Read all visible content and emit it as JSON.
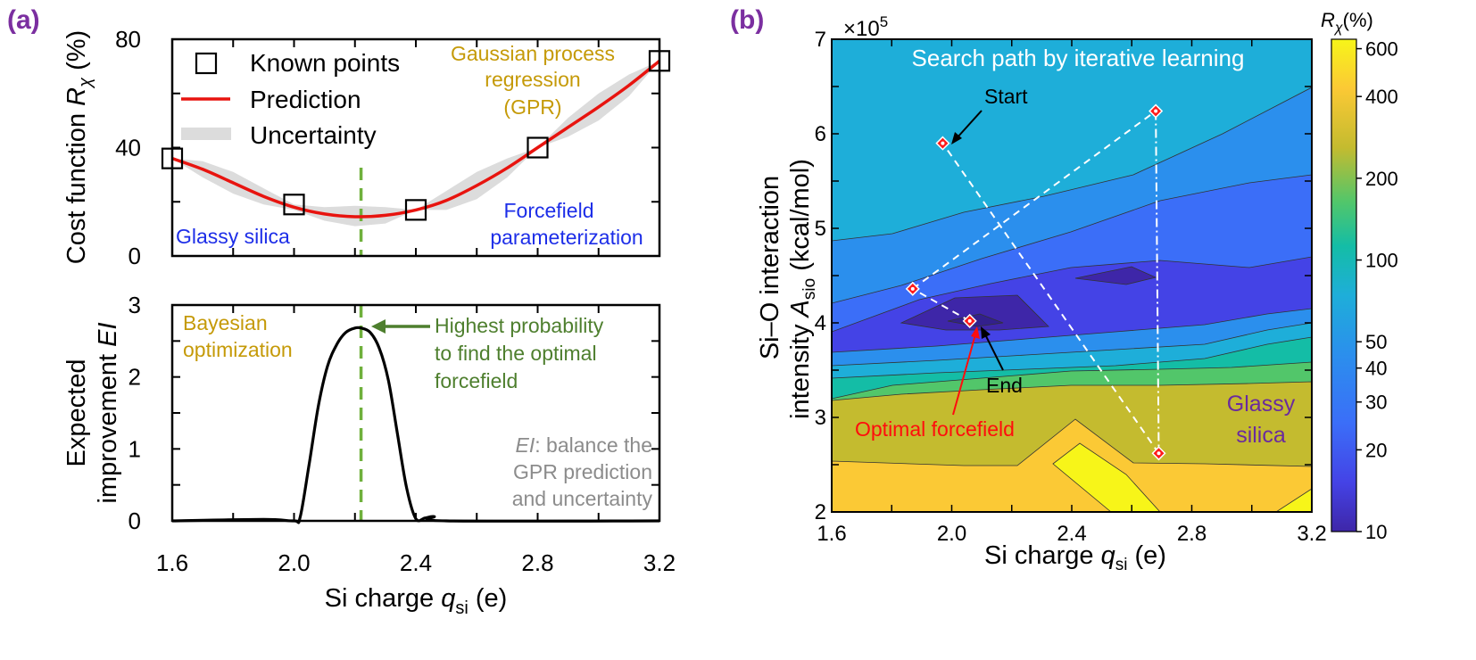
{
  "chart_data": [
    {
      "type": "line",
      "panel_label": "(a)",
      "subplot": "top",
      "ylabel_pre": "Cost function ",
      "ylabel_sym": "R",
      "ylabel_sub": "χ",
      "ylabel_post": " (%)",
      "xlim": [
        1.6,
        3.2
      ],
      "ylim": [
        0,
        80
      ],
      "yticks": [
        0,
        40,
        80
      ],
      "known_points": {
        "name": "Known points",
        "x": [
          1.6,
          2.0,
          2.4,
          2.8,
          3.2
        ],
        "y": [
          36,
          19,
          17,
          40,
          72
        ]
      },
      "prediction": {
        "name": "Prediction",
        "x": [
          1.6,
          1.7,
          1.8,
          1.9,
          2.0,
          2.1,
          2.2,
          2.3,
          2.4,
          2.5,
          2.6,
          2.7,
          2.8,
          2.9,
          3.0,
          3.1,
          3.2
        ],
        "y": [
          36,
          32,
          27,
          22,
          18,
          15.5,
          14.5,
          15,
          17,
          20.5,
          26,
          32.5,
          40,
          47.5,
          55,
          63,
          72
        ]
      },
      "uncertainty": {
        "name": "Uncertainty",
        "x": [
          1.6,
          1.7,
          1.8,
          1.9,
          2.0,
          2.1,
          2.2,
          2.3,
          2.4,
          2.5,
          2.6,
          2.7,
          2.8,
          2.9,
          3.0,
          3.1,
          3.2
        ],
        "upper": [
          36,
          35,
          31,
          25,
          19,
          18,
          18.5,
          18,
          17,
          24,
          31,
          36,
          40,
          51,
          60,
          67,
          72
        ],
        "lower": [
          36,
          29,
          23,
          19,
          17,
          13,
          11,
          12,
          17,
          17,
          21,
          29,
          40,
          44,
          50,
          59,
          72
        ]
      },
      "optimum_x": 2.22,
      "annotations": {
        "gpr_1": "Gaussian process",
        "gpr_2": "regression",
        "gpr_3": "(GPR)",
        "glassy": "Glassy silica",
        "ff_1": "Forcefield",
        "ff_2": "parameterization"
      }
    },
    {
      "type": "line",
      "subplot": "bottom",
      "ylabel_line1": "Expected",
      "ylabel_line2_pre": "improvement ",
      "ylabel_line2_sym": "EI",
      "xlabel_pre": "Si charge ",
      "xlabel_sym": "q",
      "xlabel_sub": "si",
      "xlabel_post": " (e)",
      "xlim": [
        1.6,
        3.2
      ],
      "ylim": [
        0,
        3
      ],
      "xticks": [
        "1.6",
        "2.0",
        "2.4",
        "2.8",
        "3.2"
      ],
      "yticks": [
        0,
        1,
        2,
        3
      ],
      "ei": {
        "x": [
          1.6,
          1.9,
          2.0,
          2.02,
          2.05,
          2.08,
          2.11,
          2.14,
          2.17,
          2.2,
          2.22,
          2.25,
          2.28,
          2.31,
          2.34,
          2.37,
          2.4,
          2.43,
          2.46,
          2.5,
          3.2
        ],
        "y": [
          0,
          0.02,
          0,
          0.05,
          0.8,
          1.6,
          2.15,
          2.45,
          2.62,
          2.68,
          2.68,
          2.62,
          2.4,
          1.95,
          1.2,
          0.45,
          0.03,
          0.04,
          0.06,
          0,
          0
        ]
      },
      "annotations": {
        "bo_1": "Bayesian",
        "bo_2": "optimization",
        "hp_1": "Highest probability",
        "hp_2": "to find the optimal",
        "hp_3": "forcefield",
        "ei_1_sym": "EI",
        "ei_1_rest": ": balance the",
        "ei_2": "GPR prediction",
        "ei_3": "and uncertainty"
      }
    },
    {
      "type": "heatmap",
      "panel_label": "(b)",
      "title": "Search path by iterative learning",
      "xlabel_pre": "Si charge ",
      "xlabel_sym": "q",
      "xlabel_sub": "si",
      "xlabel_post": " (e)",
      "ylabel_line1": "Si–O interaction",
      "ylabel_line2_pre": "intensity ",
      "ylabel_line2_sym": "A",
      "ylabel_line2_sub": "sio",
      "ylabel_line2_post": "  (kcal/mol)",
      "y_multiplier": "×10",
      "y_multiplier_exp": "5",
      "xlim": [
        1.6,
        3.2
      ],
      "ylim": [
        2,
        7
      ],
      "xticks": [
        "1.6",
        "2.0",
        "2.4",
        "2.8",
        "3.2"
      ],
      "yticks": [
        "2",
        "3",
        "4",
        "5",
        "6",
        "7"
      ],
      "colorbar_label_sym": "R",
      "colorbar_label_sub": "χ",
      "colorbar_label_post": "(%)",
      "colorbar_ticks": [
        "10",
        "20",
        "30",
        "40",
        "50",
        "100",
        "200",
        "400",
        "600"
      ],
      "colorbar_tick_values": [
        10,
        20,
        30,
        40,
        50,
        100,
        200,
        400,
        600
      ],
      "colorbar_scale": "log",
      "search_path": {
        "x": [
          2.06,
          1.87,
          2.68,
          2.69,
          1.97
        ],
        "y": [
          4.02,
          4.36,
          6.24,
          2.62,
          5.9
        ]
      },
      "annotations": {
        "start": "Start",
        "end": "End",
        "optimal": "Optimal forcefield",
        "glassy_1": "Glassy",
        "glassy_2": "silica"
      },
      "colors": {
        "c10": "#3e26a8",
        "c15": "#4443e6",
        "c20": "#3b6ef8",
        "c30": "#2b8fed",
        "c40": "#1eaed9",
        "c55": "#14bda6",
        "c80": "#52c66a",
        "c150": "#c4bb2f",
        "c350": "#fbc935",
        "c600": "#f7f519"
      }
    }
  ]
}
